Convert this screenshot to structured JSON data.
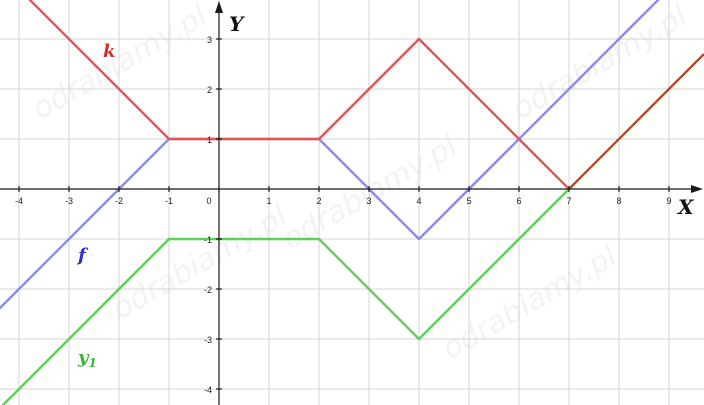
{
  "chart_data": {
    "type": "line",
    "xlabel": "X",
    "ylabel": "Y",
    "xlim": [
      -4.4,
      9.7
    ],
    "ylim": [
      -4.3,
      3.8
    ],
    "grid": true,
    "x_ticks": [
      "-4",
      "-3",
      "-2",
      "-1",
      "0",
      "1",
      "2",
      "3",
      "4",
      "5",
      "6",
      "7",
      "8",
      "9"
    ],
    "y_ticks": [
      "3",
      "2",
      "1",
      "-1",
      "-2",
      "-3",
      "-4"
    ],
    "watermark": "odrabiamy.pl",
    "series": [
      {
        "name": "f",
        "name_sub": "",
        "color": "#8c8cea",
        "x": [
          -4.4,
          -1,
          2,
          4,
          9.7
        ],
        "y": [
          -2.4,
          1,
          1,
          -1,
          4.7
        ]
      },
      {
        "name": "k",
        "name_sub": "",
        "color": "#e05656",
        "x": [
          -4.4,
          -1,
          2,
          4,
          7
        ],
        "y": [
          4.4,
          1,
          1,
          3,
          0
        ]
      },
      {
        "name": "y",
        "name_sub": "1",
        "color": "#5ccf5c",
        "x": [
          -4.4,
          -1,
          2,
          4,
          7
        ],
        "y": [
          -4.4,
          -1,
          -1,
          -3,
          0
        ]
      },
      {
        "name": "",
        "name_sub": "",
        "color": "#a8522e",
        "x": [
          7,
          9.7
        ],
        "y": [
          0,
          2.7
        ]
      }
    ]
  }
}
